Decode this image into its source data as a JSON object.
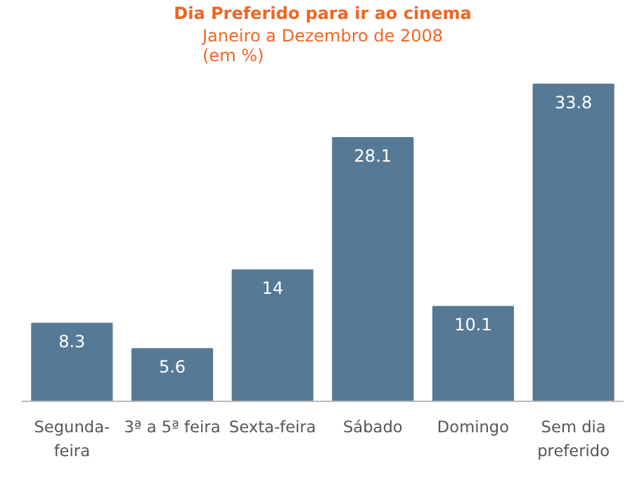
{
  "chart_data": {
    "type": "bar",
    "title": "Dia Preferido para ir ao cinema",
    "subtitle": "Janeiro a Dezembro de 2008\n(em %)",
    "categories": [
      "Segunda-\nfeira",
      "3ª a 5ª feira",
      "Sexta-feira",
      "Sábado",
      "Domingo",
      "Sem dia\npreferido"
    ],
    "values": [
      8.3,
      5.6,
      14,
      28.1,
      10.1,
      33.8
    ],
    "color": "#567a96",
    "data_labels": true
  }
}
